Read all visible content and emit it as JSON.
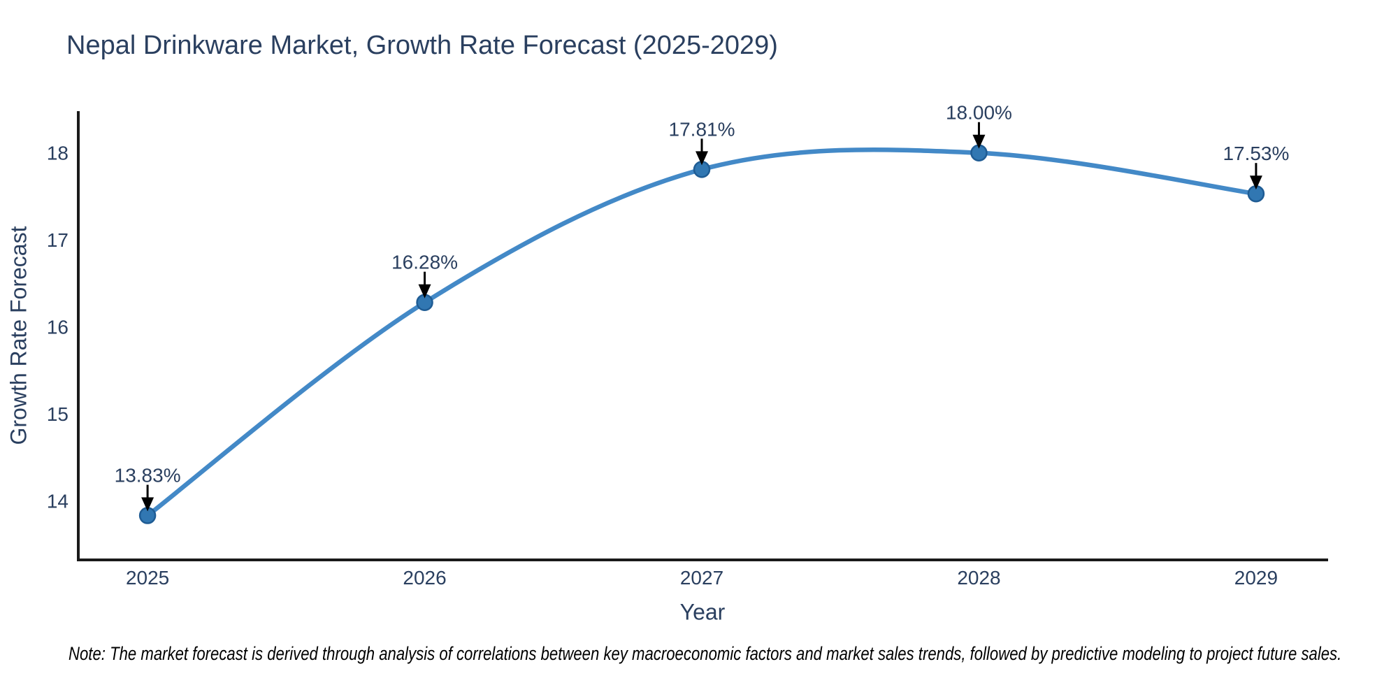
{
  "note": "Note: The market forecast is derived through analysis of correlations between key macroeconomic factors and market sales trends, followed by predictive modeling to project future sales.",
  "chart_data": {
    "type": "line",
    "title": "Nepal Drinkware Market, Growth Rate Forecast (2025-2029)",
    "xlabel": "Year",
    "ylabel": "Growth Rate Forecast",
    "x": [
      2025,
      2026,
      2027,
      2028,
      2029
    ],
    "categories": [
      "2025",
      "2026",
      "2027",
      "2028",
      "2029"
    ],
    "values": [
      13.83,
      16.28,
      17.81,
      18.0,
      17.53
    ],
    "point_labels": [
      "13.83%",
      "16.28%",
      "17.81%",
      "18.00%",
      "17.53%"
    ],
    "series_name": "Growth Rate Forecast",
    "line_shape": "spline",
    "grid": false,
    "legend_visible": false,
    "xlim": [
      2024.75,
      2029.26
    ],
    "ylim": [
      13.32,
      18.48
    ],
    "yticks": [
      14,
      15,
      16,
      17,
      18
    ],
    "colors": {
      "line": "#4389c7",
      "marker": "#3177b2",
      "marker_border": "#1f5c94",
      "arrow": "#000000",
      "text": "#2a3f5f",
      "axis": "#1a1a1a",
      "note_text": "#000000",
      "background": "#ffffff"
    }
  }
}
